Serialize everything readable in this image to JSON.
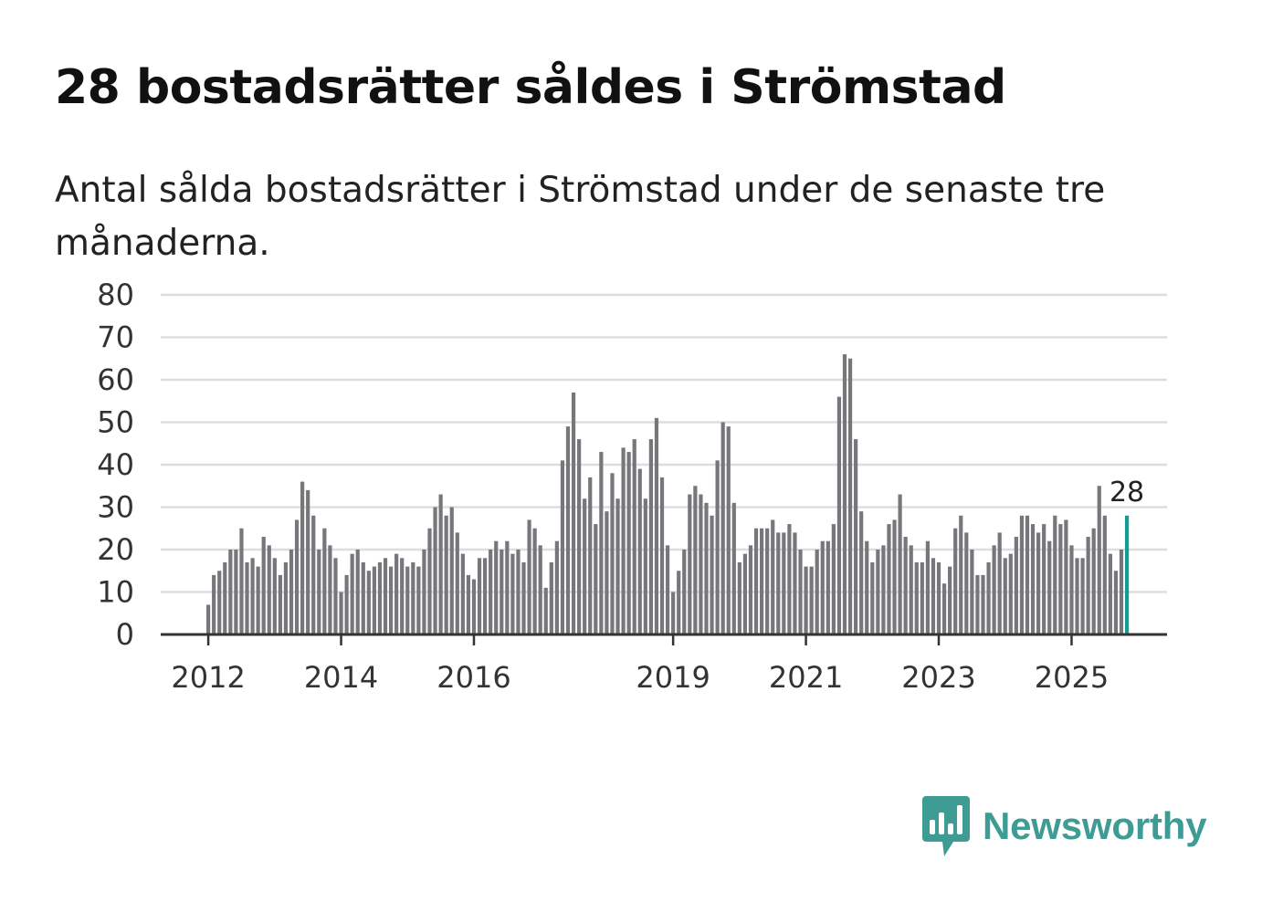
{
  "title": "28 bostadsrätter såldes i Strömstad",
  "subtitle": "Antal sålda bostadsrätter i Strömstad under de senaste tre månaderna.",
  "brand": {
    "name": "Newsworthy",
    "color": "#3f9c94",
    "icon": "newsworthy-bar-chart-icon"
  },
  "colors": {
    "bar": "#77767b",
    "highlight": "#159b94",
    "grid": "#dddddd",
    "axis": "#333333"
  },
  "chart_data": {
    "type": "bar",
    "title": "28 bostadsrätter såldes i Strömstad",
    "xlabel": "",
    "ylabel": "",
    "ylim": [
      0,
      80
    ],
    "y_ticks": [
      0,
      10,
      20,
      30,
      40,
      50,
      60,
      70,
      80
    ],
    "x_ticks": [
      {
        "label": "2012",
        "index": 0
      },
      {
        "label": "2014",
        "index": 24
      },
      {
        "label": "2016",
        "index": 48
      },
      {
        "label": "2019",
        "index": 84
      },
      {
        "label": "2021",
        "index": 108
      },
      {
        "label": "2023",
        "index": 132
      },
      {
        "label": "2025",
        "index": 156
      }
    ],
    "values": [
      7,
      14,
      15,
      17,
      20,
      20,
      25,
      17,
      18,
      16,
      23,
      21,
      18,
      14,
      17,
      20,
      27,
      36,
      34,
      28,
      20,
      25,
      21,
      18,
      10,
      14,
      19,
      20,
      17,
      15,
      16,
      17,
      18,
      16,
      19,
      18,
      16,
      17,
      16,
      20,
      25,
      30,
      33,
      28,
      30,
      24,
      19,
      14,
      13,
      18,
      18,
      20,
      22,
      20,
      22,
      19,
      20,
      17,
      27,
      25,
      21,
      11,
      17,
      22,
      41,
      49,
      57,
      46,
      32,
      37,
      26,
      43,
      29,
      38,
      32,
      44,
      43,
      46,
      39,
      32,
      46,
      51,
      37,
      21,
      10,
      15,
      20,
      33,
      35,
      33,
      31,
      28,
      41,
      50,
      49,
      31,
      17,
      19,
      21,
      25,
      25,
      25,
      27,
      24,
      24,
      26,
      24,
      20,
      16,
      16,
      20,
      22,
      22,
      26,
      56,
      66,
      65,
      46,
      29,
      22,
      17,
      20,
      21,
      26,
      27,
      33,
      23,
      21,
      17,
      17,
      22,
      18,
      17,
      12,
      16,
      25,
      28,
      24,
      20,
      14,
      14,
      17,
      21,
      24,
      18,
      19,
      23,
      28,
      28,
      26,
      24,
      26,
      22,
      28,
      26,
      27,
      21,
      18,
      18,
      23,
      25,
      35,
      28,
      19,
      15,
      20,
      28
    ],
    "highlight_last": true,
    "last_value_label": "28"
  }
}
